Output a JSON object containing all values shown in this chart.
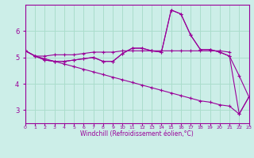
{
  "xlabel": "Windchill (Refroidissement éolien,°C)",
  "bg_color": "#cceee8",
  "grid_color": "#aaddcc",
  "line_color": "#990099",
  "xlim": [
    0,
    23
  ],
  "ylim": [
    2.5,
    7.0
  ],
  "yticks": [
    3,
    4,
    5,
    6
  ],
  "lines": [
    {
      "x": [
        0,
        1,
        2,
        3,
        4,
        5,
        6,
        7,
        8,
        9,
        10,
        11,
        12,
        13,
        14,
        15,
        16,
        17,
        18,
        19,
        20,
        21
      ],
      "y": [
        5.25,
        5.05,
        5.05,
        5.1,
        5.1,
        5.1,
        5.15,
        5.2,
        5.2,
        5.2,
        5.25,
        5.25,
        5.25,
        5.25,
        5.25,
        5.25,
        5.25,
        5.25,
        5.25,
        5.25,
        5.25,
        5.2
      ]
    },
    {
      "x": [
        0,
        1,
        2,
        3,
        4,
        5,
        6,
        7,
        8,
        9,
        10,
        11,
        12,
        13,
        14,
        15,
        16,
        17,
        18,
        19,
        20,
        21,
        22,
        23
      ],
      "y": [
        5.25,
        5.05,
        4.9,
        4.85,
        4.85,
        4.9,
        4.95,
        5.0,
        4.85,
        4.85,
        5.15,
        5.35,
        5.35,
        5.25,
        5.2,
        6.8,
        6.65,
        5.85,
        5.3,
        5.3,
        5.2,
        5.05,
        4.3,
        3.5
      ]
    },
    {
      "x": [
        0,
        1,
        2,
        3,
        4,
        5,
        6,
        7,
        8,
        9,
        10,
        11,
        12,
        13,
        14,
        15,
        16,
        17,
        18,
        19,
        20,
        21,
        22,
        23
      ],
      "y": [
        5.25,
        5.05,
        4.9,
        4.85,
        4.85,
        4.9,
        4.95,
        5.0,
        4.85,
        4.85,
        5.15,
        5.35,
        5.35,
        5.25,
        5.2,
        6.8,
        6.65,
        5.85,
        5.3,
        5.3,
        5.2,
        5.05,
        2.85,
        3.5
      ]
    },
    {
      "x": [
        0,
        1,
        2,
        3,
        4,
        5,
        6,
        7,
        8,
        9,
        10,
        11,
        12,
        13,
        14,
        15,
        16,
        17,
        18,
        19,
        20,
        21,
        22,
        23
      ],
      "y": [
        5.25,
        5.05,
        4.95,
        4.85,
        4.75,
        4.65,
        4.55,
        4.45,
        4.35,
        4.25,
        4.15,
        4.05,
        3.95,
        3.85,
        3.75,
        3.65,
        3.55,
        3.45,
        3.35,
        3.3,
        3.2,
        3.15,
        2.85,
        3.5
      ]
    }
  ]
}
